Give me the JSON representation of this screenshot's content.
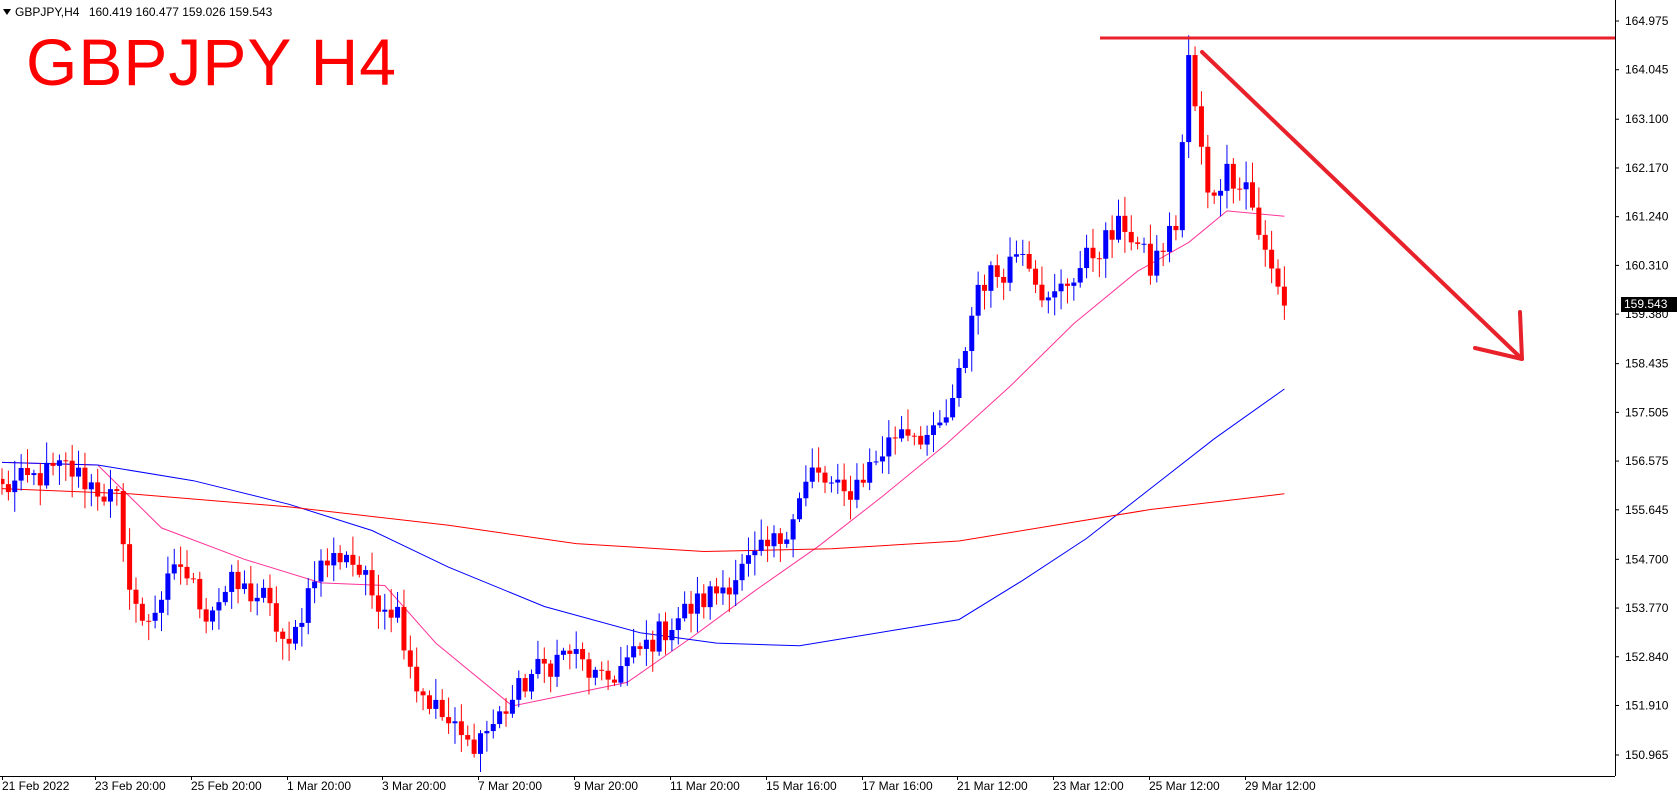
{
  "header": {
    "symbol": "GBPJPY,H4",
    "ohlc": "160.419 160.477 159.026 159.543"
  },
  "title": "GBPJPY H4",
  "current_price": "159.543",
  "colors": {
    "bull_candle": "#0000ff",
    "bear_candle": "#ff0000",
    "ma_fast": "#ff3399",
    "ma_mid": "#0000ff",
    "ma_slow": "#ff0000",
    "annotation": "#e8212b"
  },
  "chart_data": {
    "type": "candlestick",
    "price_axis": {
      "min": 150.965,
      "max": 164.975,
      "ticks": [
        "164.975",
        "164.045",
        "163.100",
        "162.170",
        "161.240",
        "160.310",
        "159.380",
        "158.435",
        "157.505",
        "156.575",
        "155.645",
        "154.700",
        "153.770",
        "152.840",
        "151.910",
        "150.965"
      ]
    },
    "time_axis": {
      "ticks": [
        "21 Feb 2022",
        "23 Feb 20:00",
        "25 Feb 20:00",
        "1 Mar 20:00",
        "3 Mar 20:00",
        "7 Mar 20:00",
        "9 Mar 20:00",
        "11 Mar 20:00",
        "15 Mar 16:00",
        "17 Mar 16:00",
        "21 Mar 12:00",
        "23 Mar 12:00",
        "25 Mar 12:00",
        "29 Mar 12:00"
      ]
    },
    "anchors": [
      [
        0,
        156.05
      ],
      [
        10,
        156.45
      ],
      [
        18,
        155.8
      ],
      [
        19,
        154.8
      ],
      [
        22,
        153.4
      ],
      [
        28,
        154.6
      ],
      [
        32,
        153.7
      ],
      [
        36,
        154.2
      ],
      [
        41,
        153.95
      ],
      [
        45,
        152.9
      ],
      [
        49,
        154.5
      ],
      [
        54,
        154.85
      ],
      [
        58,
        154.05
      ],
      [
        62,
        153.7
      ],
      [
        65,
        152.3
      ],
      [
        70,
        151.55
      ],
      [
        73,
        151.15
      ],
      [
        77,
        151.55
      ],
      [
        83,
        152.5
      ],
      [
        89,
        152.95
      ],
      [
        94,
        152.3
      ],
      [
        100,
        152.95
      ],
      [
        106,
        153.6
      ],
      [
        112,
        154.1
      ],
      [
        117,
        154.6
      ],
      [
        122,
        155.1
      ],
      [
        127,
        156.35
      ],
      [
        132,
        155.9
      ],
      [
        137,
        156.6
      ],
      [
        141,
        157.25
      ],
      [
        146,
        157.0
      ],
      [
        149,
        157.6
      ],
      [
        153,
        159.95
      ],
      [
        157,
        160.25
      ],
      [
        160,
        160.75
      ],
      [
        164,
        159.55
      ],
      [
        167,
        160.0
      ],
      [
        171,
        160.55
      ],
      [
        176,
        161.1
      ],
      [
        180,
        160.25
      ],
      [
        184,
        161.1
      ],
      [
        186,
        164.2
      ],
      [
        189,
        161.6
      ],
      [
        192,
        162.1
      ],
      [
        195,
        161.9
      ],
      [
        198,
        160.5
      ],
      [
        201,
        159.543
      ]
    ],
    "moving_averages": [
      {
        "period": "fast",
        "color": "#ff3399",
        "points": [
          [
            0,
            156.55
          ],
          [
            15,
            156.5
          ],
          [
            25,
            155.3
          ],
          [
            38,
            154.7
          ],
          [
            50,
            154.25
          ],
          [
            60,
            154.2
          ],
          [
            68,
            153.1
          ],
          [
            80,
            151.9
          ],
          [
            88,
            152.1
          ],
          [
            98,
            152.35
          ],
          [
            108,
            153.2
          ],
          [
            118,
            154.1
          ],
          [
            128,
            154.95
          ],
          [
            138,
            155.9
          ],
          [
            148,
            156.9
          ],
          [
            158,
            158.0
          ],
          [
            168,
            159.2
          ],
          [
            178,
            160.2
          ],
          [
            186,
            160.75
          ],
          [
            192,
            161.35
          ],
          [
            201,
            161.25
          ]
        ]
      },
      {
        "period": "mid",
        "color": "#0000ff",
        "points": [
          [
            0,
            156.55
          ],
          [
            15,
            156.5
          ],
          [
            30,
            156.2
          ],
          [
            45,
            155.75
          ],
          [
            58,
            155.25
          ],
          [
            70,
            154.55
          ],
          [
            85,
            153.8
          ],
          [
            100,
            153.3
          ],
          [
            112,
            153.1
          ],
          [
            125,
            153.05
          ],
          [
            140,
            153.35
          ],
          [
            150,
            153.55
          ],
          [
            160,
            154.3
          ],
          [
            170,
            155.1
          ],
          [
            180,
            156.05
          ],
          [
            190,
            157.0
          ],
          [
            201,
            157.95
          ]
        ]
      },
      {
        "period": "slow",
        "color": "#ff0000",
        "points": [
          [
            0,
            156.05
          ],
          [
            20,
            155.95
          ],
          [
            45,
            155.7
          ],
          [
            70,
            155.35
          ],
          [
            90,
            155.0
          ],
          [
            110,
            154.85
          ],
          [
            130,
            154.9
          ],
          [
            150,
            155.05
          ],
          [
            165,
            155.35
          ],
          [
            180,
            155.65
          ],
          [
            201,
            155.95
          ]
        ]
      }
    ],
    "annotations": {
      "resistance_level": 164.65,
      "arrow": "down"
    }
  }
}
